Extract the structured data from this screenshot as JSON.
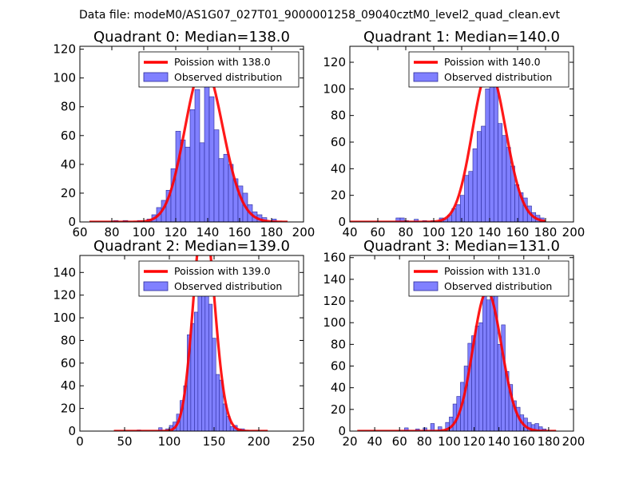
{
  "suptitle": "Data file: modeM0/AS1G07_027T01_9000001258_09040cztM0_level2_quad_clean.evt",
  "colors": {
    "bar_fill": "#8080ff",
    "bar_edge": "#2a2a9a",
    "curve": "#ff0000"
  },
  "chart_data": [
    {
      "type": "bar",
      "title": "Quadrant 0: Median=138.0",
      "xlim": [
        60,
        200
      ],
      "ylim": [
        0,
        122
      ],
      "xticks": [
        60,
        80,
        100,
        120,
        140,
        160,
        180,
        200
      ],
      "yticks": [
        0,
        20,
        40,
        60,
        80,
        100,
        120
      ],
      "legend": [
        "Poission with 138.0",
        "Observed distribution"
      ],
      "legend_loc": "top-right",
      "bin_width": 3,
      "bins": [
        [
          81,
          1
        ],
        [
          87,
          1
        ],
        [
          96,
          1
        ],
        [
          102,
          2
        ],
        [
          105,
          5
        ],
        [
          108,
          10
        ],
        [
          111,
          15
        ],
        [
          114,
          22
        ],
        [
          117,
          37
        ],
        [
          120,
          63
        ],
        [
          123,
          57
        ],
        [
          126,
          52
        ],
        [
          129,
          78
        ],
        [
          132,
          92
        ],
        [
          135,
          55
        ],
        [
          138,
          99
        ],
        [
          141,
          87
        ],
        [
          144,
          64
        ],
        [
          147,
          44
        ],
        [
          150,
          47
        ],
        [
          153,
          40
        ],
        [
          156,
          30
        ],
        [
          159,
          25
        ],
        [
          162,
          20
        ],
        [
          165,
          12
        ],
        [
          168,
          7
        ],
        [
          171,
          5
        ],
        [
          174,
          3
        ],
        [
          180,
          2
        ]
      ],
      "model": {
        "mean": 138.0,
        "n_events": 1600,
        "bin_width": 2,
        "x_range": [
          66,
          190
        ]
      }
    },
    {
      "type": "bar",
      "title": "Quadrant 1: Median=140.0",
      "xlim": [
        40,
        200
      ],
      "ylim": [
        0,
        132
      ],
      "xticks": [
        40,
        60,
        80,
        100,
        120,
        140,
        160,
        180,
        200
      ],
      "yticks": [
        0,
        20,
        40,
        60,
        80,
        100,
        120
      ],
      "legend": [
        "Poission with 140.0",
        "Observed distribution"
      ],
      "legend_loc": "top-right",
      "bin_width": 3,
      "bins": [
        [
          73,
          3
        ],
        [
          76,
          3
        ],
        [
          79,
          1
        ],
        [
          86,
          2
        ],
        [
          92,
          1
        ],
        [
          98,
          1
        ],
        [
          104,
          3
        ],
        [
          107,
          2
        ],
        [
          110,
          5
        ],
        [
          113,
          10
        ],
        [
          116,
          13
        ],
        [
          119,
          20
        ],
        [
          122,
          35
        ],
        [
          125,
          38
        ],
        [
          128,
          55
        ],
        [
          131,
          68
        ],
        [
          134,
          72
        ],
        [
          137,
          100
        ],
        [
          140,
          110
        ],
        [
          143,
          108
        ],
        [
          146,
          74
        ],
        [
          149,
          65
        ],
        [
          152,
          56
        ],
        [
          155,
          42
        ],
        [
          158,
          28
        ],
        [
          161,
          22
        ],
        [
          164,
          18
        ],
        [
          167,
          12
        ],
        [
          170,
          7
        ],
        [
          173,
          5
        ],
        [
          176,
          3
        ]
      ],
      "model": {
        "mean": 140.0,
        "n_events": 1700,
        "bin_width": 2,
        "x_range": [
          40,
          180
        ]
      }
    },
    {
      "type": "bar",
      "title": "Quadrant 2: Median=139.0",
      "xlim": [
        0,
        250
      ],
      "ylim": [
        0,
        155
      ],
      "xticks": [
        0,
        50,
        100,
        150,
        200,
        250
      ],
      "yticks": [
        0,
        20,
        40,
        60,
        80,
        100,
        120,
        140
      ],
      "legend": [
        "Poission with 139.0",
        "Observed distribution"
      ],
      "legend_loc": "top-right",
      "bin_width": 4,
      "bins": [
        [
          64,
          1
        ],
        [
          88,
          3
        ],
        [
          96,
          2
        ],
        [
          100,
          5
        ],
        [
          104,
          8
        ],
        [
          108,
          15
        ],
        [
          112,
          27
        ],
        [
          116,
          40
        ],
        [
          120,
          85
        ],
        [
          124,
          95
        ],
        [
          128,
          105
        ],
        [
          132,
          120
        ],
        [
          136,
          130
        ],
        [
          140,
          137
        ],
        [
          144,
          112
        ],
        [
          148,
          82
        ],
        [
          152,
          50
        ],
        [
          156,
          45
        ],
        [
          160,
          24
        ],
        [
          164,
          13
        ],
        [
          168,
          4
        ],
        [
          172,
          5
        ],
        [
          176,
          2
        ],
        [
          180,
          2
        ]
      ],
      "model": {
        "mean": 139.0,
        "n_events": 1880,
        "bin_width": 3,
        "x_range": [
          38,
          210
        ]
      }
    },
    {
      "type": "bar",
      "title": "Quadrant 3: Median=131.0",
      "xlim": [
        20,
        200
      ],
      "ylim": [
        0,
        162
      ],
      "xticks": [
        20,
        40,
        60,
        80,
        100,
        120,
        140,
        160,
        180,
        200
      ],
      "yticks": [
        0,
        20,
        40,
        60,
        80,
        100,
        120,
        140,
        160
      ],
      "legend": [
        "Poission with 131.0",
        "Observed distribution"
      ],
      "legend_loc": "top-right",
      "bin_width": 3,
      "bins": [
        [
          64,
          3
        ],
        [
          73,
          2
        ],
        [
          79,
          3
        ],
        [
          85,
          7
        ],
        [
          91,
          4
        ],
        [
          97,
          8
        ],
        [
          100,
          13
        ],
        [
          103,
          25
        ],
        [
          106,
          32
        ],
        [
          109,
          45
        ],
        [
          112,
          60
        ],
        [
          115,
          81
        ],
        [
          118,
          88
        ],
        [
          121,
          97
        ],
        [
          124,
          100
        ],
        [
          127,
          128
        ],
        [
          130,
          121
        ],
        [
          133,
          146
        ],
        [
          136,
          134
        ],
        [
          139,
          80
        ],
        [
          142,
          98
        ],
        [
          145,
          55
        ],
        [
          148,
          43
        ],
        [
          151,
          28
        ],
        [
          154,
          22
        ],
        [
          157,
          15
        ],
        [
          160,
          12
        ],
        [
          163,
          8
        ],
        [
          166,
          6
        ],
        [
          169,
          7
        ],
        [
          172,
          4
        ],
        [
          175,
          2
        ]
      ],
      "model": {
        "mean": 131.0,
        "n_events": 1850,
        "bin_width": 2,
        "x_range": [
          26,
          186
        ]
      }
    }
  ]
}
